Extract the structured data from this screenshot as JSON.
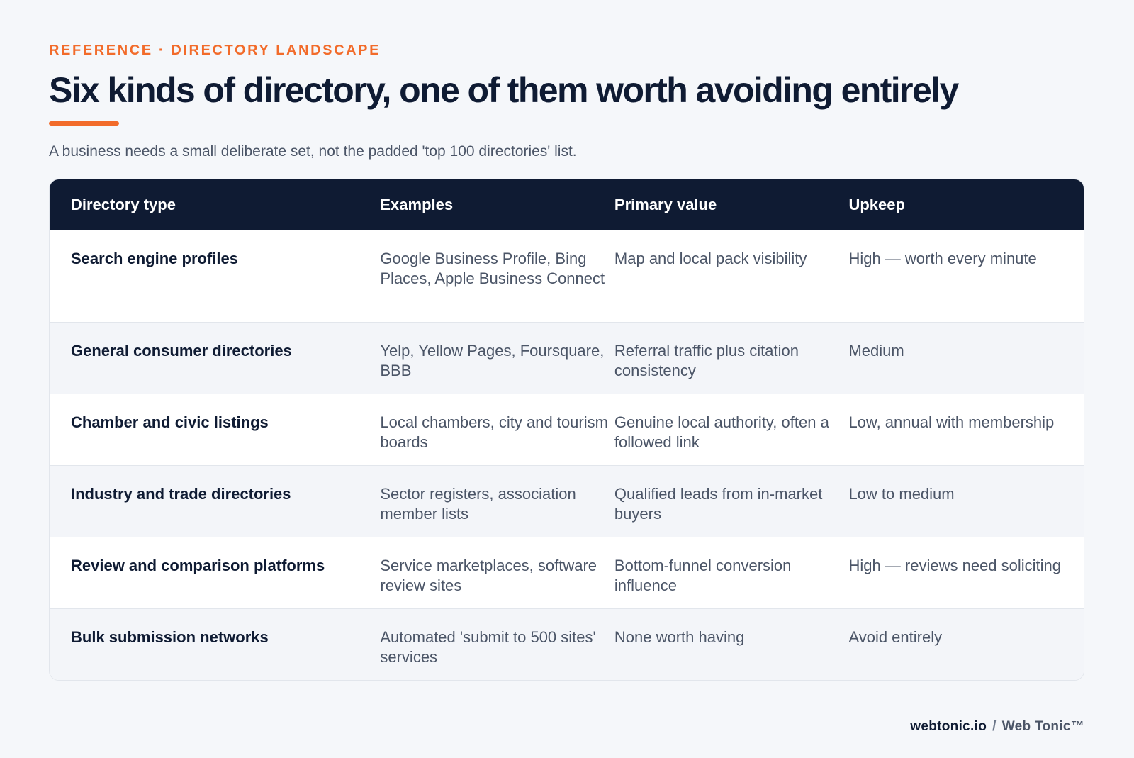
{
  "eyebrow": "REFERENCE · DIRECTORY LANDSCAPE",
  "title": "Six kinds of directory, one of them worth avoiding entirely",
  "subtitle": "A business needs a small deliberate set, not the padded 'top 100 directories' list.",
  "table": {
    "headers": [
      "Directory type",
      "Examples",
      "Primary value",
      "Upkeep"
    ],
    "rows": [
      {
        "type": "Search engine profiles",
        "examples": "Google Business Profile, Bing Places, Apple Business Connect",
        "value": "Map and local pack visibility",
        "upkeep": "High — worth every minute"
      },
      {
        "type": "General consumer directories",
        "examples": "Yelp, Yellow Pages, Foursquare, BBB",
        "value": "Referral traffic plus citation consistency",
        "upkeep": "Medium"
      },
      {
        "type": "Chamber and civic listings",
        "examples": "Local chambers, city and tourism boards",
        "value": "Genuine local authority, often a followed link",
        "upkeep": "Low, annual with membership"
      },
      {
        "type": "Industry and trade directories",
        "examples": "Sector registers, association member lists",
        "value": "Qualified leads from in-market buyers",
        "upkeep": "Low to medium"
      },
      {
        "type": "Review and comparison platforms",
        "examples": "Service marketplaces, software review sites",
        "value": "Bottom-funnel conversion influence",
        "upkeep": "High — reviews need soliciting"
      },
      {
        "type": "Bulk submission networks",
        "examples": "Automated 'submit to 500 sites' services",
        "value": "None worth having",
        "upkeep": "Avoid entirely"
      }
    ]
  },
  "footer": {
    "site": "webtonic.io",
    "separator": "/",
    "brand": "Web Tonic™"
  },
  "colors": {
    "accent": "#f26b2a",
    "navy": "#0f1b33",
    "background": "#f5f7fa"
  }
}
